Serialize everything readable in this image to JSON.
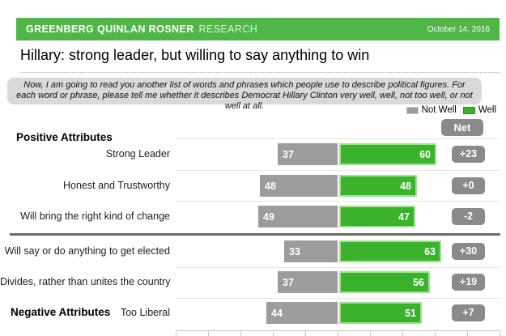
{
  "header": {
    "brand_bold": "GREENBERG QUINLAN ROSNER",
    "brand_light": "RESEARCH",
    "date": "October 14, 2016"
  },
  "title": "Hillary: strong leader, but willing to say anything to win",
  "instruction": "Now, I am going to read you another list of words and phrases which people use to describe political figures. For each word or phrase, please tell me whether it describes Democrat Hillary Clinton very well, well, not too well, or not well at all.",
  "legend": {
    "not_well": "Not Well",
    "well": "Well"
  },
  "net_header": "Net",
  "groups": {
    "positive": "Positive Attributes",
    "negative": "Negative Attributes"
  },
  "colors": {
    "header_green": "#4fb748",
    "bar_green": "#3ab22c",
    "bar_green_border": "#a0e093",
    "bar_gray": "#9c9c9c",
    "badge_gray": "#8a8a8a",
    "instruction_bg": "#d9d9d9"
  },
  "chart_data": {
    "type": "bar",
    "orientation": "horizontal-diverging",
    "title": "Hillary: strong leader, but willing to say anything to win",
    "categories": [
      "Strong Leader",
      "Honest and Trustworthy",
      "Will bring the right kind of change",
      "Will say or do anything to get elected",
      "Divides, rather than unites the country",
      "Too Liberal"
    ],
    "series": [
      {
        "name": "Not Well",
        "color": "#9c9c9c",
        "values": [
          37,
          48,
          49,
          33,
          37,
          44
        ]
      },
      {
        "name": "Well",
        "color": "#3ab22c",
        "values": [
          60,
          48,
          47,
          63,
          56,
          51
        ]
      }
    ],
    "net_labels": [
      "+23",
      "+0",
      "-2",
      "+30",
      "+19",
      "+7"
    ],
    "groups": [
      {
        "label": "Positive Attributes",
        "row_indexes": [
          0,
          1,
          2
        ]
      },
      {
        "label": "Negative Attributes",
        "row_indexes": [
          3,
          4,
          5
        ]
      }
    ],
    "legend_position": "top-right",
    "net_column": "right",
    "x_axis": {
      "range": [
        -100,
        100
      ],
      "tick_interval": 20,
      "tick_labels_visible": false,
      "note": "axis label row cut off at bottom edge of image"
    }
  }
}
